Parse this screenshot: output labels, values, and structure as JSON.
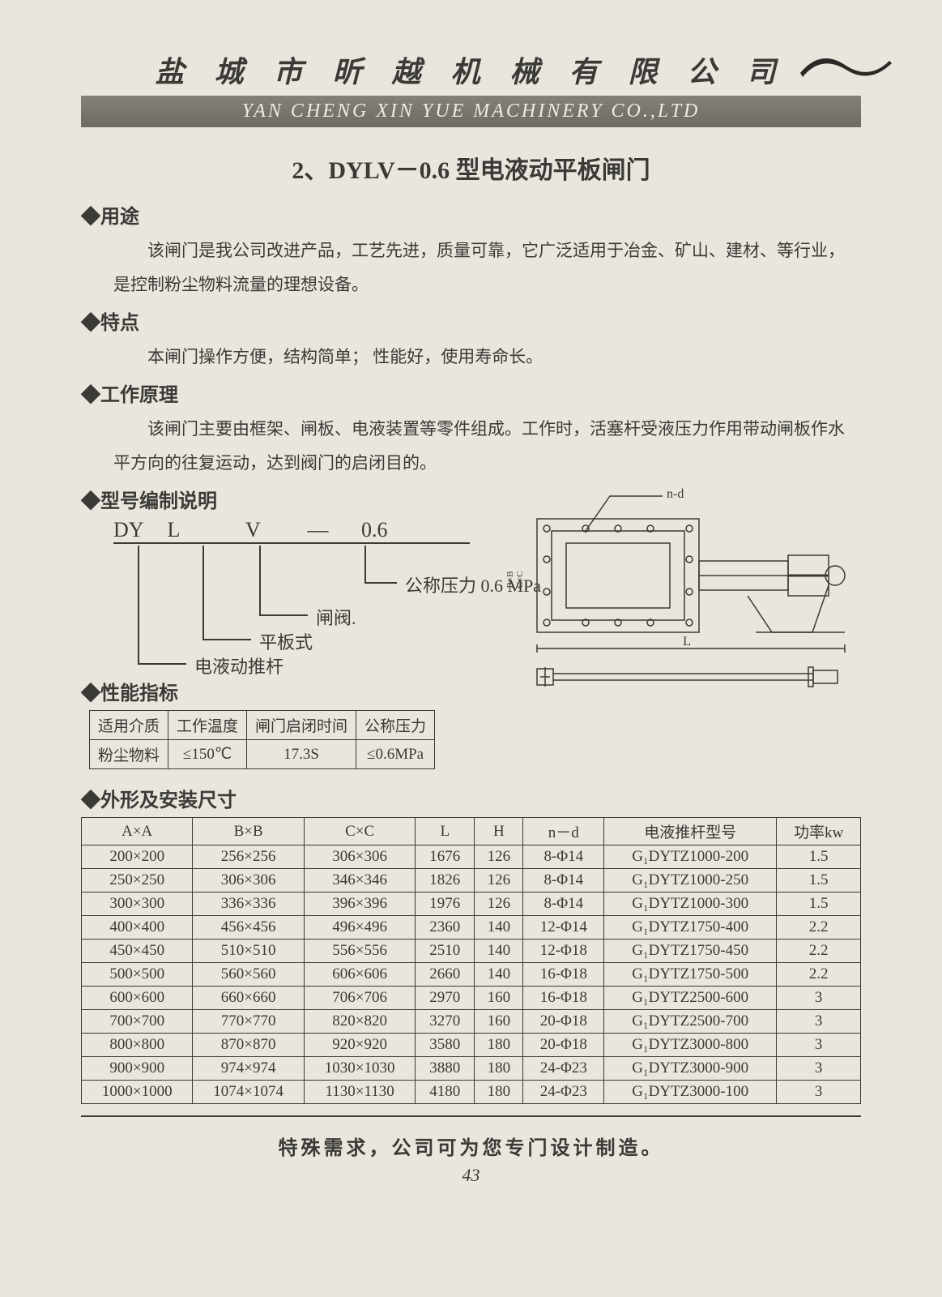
{
  "header": {
    "company_cn": "盐 城 市 昕 越 机 械 有 限 公 司",
    "company_en": "YAN CHENG XIN YUE MACHINERY CO.,LTD"
  },
  "title": "2、DYLV－0.6 型电液动平板闸门",
  "sections": {
    "use_h": "◆用途",
    "use_p": "该闸门是我公司改进产品，工艺先进，质量可靠，它广泛适用于冶金、矿山、建材、等行业，是控制粉尘物料流量的理想设备。",
    "feat_h": "◆特点",
    "feat_p": "本闸门操作方便，结构简单；  性能好，使用寿命长。",
    "work_h": "◆工作原理",
    "work_p": "该闸门主要由框架、闸板、电液装置等零件组成。工作时，活塞杆受液压力作用带动闸板作水平方向的往复运动，达到阀门的启闭目的。",
    "model_h": "◆型号编制说明",
    "perf_h": "◆性能指标",
    "dim_h": "◆外形及安装尺寸"
  },
  "model": {
    "parts": [
      "DY",
      "L",
      "V",
      "—",
      "0.6"
    ],
    "labels": {
      "a": "公称压力 0.6 MPa",
      "b": "闸阀.",
      "c": "平板式",
      "d": "电液动推杆"
    }
  },
  "perf": {
    "h": [
      "适用介质",
      "工作温度",
      "闸门启闭时间",
      "公称压力"
    ],
    "r": [
      "粉尘物料",
      "≤150℃",
      "17.3S",
      "≤0.6MPa"
    ]
  },
  "dim": {
    "h": [
      "A×A",
      "B×B",
      "C×C",
      "L",
      "H",
      "n－d",
      "电液推杆型号",
      "功率kw"
    ],
    "rows": [
      [
        "200×200",
        "256×256",
        "306×306",
        "1676",
        "126",
        "8-Φ14",
        "G₁DYTZ1000-200",
        "1.5"
      ],
      [
        "250×250",
        "306×306",
        "346×346",
        "1826",
        "126",
        "8-Φ14",
        "G₁DYTZ1000-250",
        "1.5"
      ],
      [
        "300×300",
        "336×336",
        "396×396",
        "1976",
        "126",
        "8-Φ14",
        "G₁DYTZ1000-300",
        "1.5"
      ],
      [
        "400×400",
        "456×456",
        "496×496",
        "2360",
        "140",
        "12-Φ14",
        "G₁DYTZ1750-400",
        "2.2"
      ],
      [
        "450×450",
        "510×510",
        "556×556",
        "2510",
        "140",
        "12-Φ18",
        "G₁DYTZ1750-450",
        "2.2"
      ],
      [
        "500×500",
        "560×560",
        "606×606",
        "2660",
        "140",
        "16-Φ18",
        "G₁DYTZ1750-500",
        "2.2"
      ],
      [
        "600×600",
        "660×660",
        "706×706",
        "2970",
        "160",
        "16-Φ18",
        "G₁DYTZ2500-600",
        "3"
      ],
      [
        "700×700",
        "770×770",
        "820×820",
        "3270",
        "160",
        "20-Φ18",
        "G₁DYTZ2500-700",
        "3"
      ],
      [
        "800×800",
        "870×870",
        "920×920",
        "3580",
        "180",
        "20-Φ18",
        "G₁DYTZ3000-800",
        "3"
      ],
      [
        "900×900",
        "974×974",
        "1030×1030",
        "3880",
        "180",
        "24-Φ23",
        "G₁DYTZ3000-900",
        "3"
      ],
      [
        "1000×1000",
        "1074×1074",
        "1130×1130",
        "4180",
        "180",
        "24-Φ23",
        "G₁DYTZ3000-100",
        "3"
      ]
    ]
  },
  "drawing": {
    "callout": "n-d",
    "dim_l": "L",
    "dim_c": "C×C",
    "dim_b": "B×B",
    "dim_a": "A×A"
  },
  "note": "特殊需求，公司可为您专门设计制造。",
  "page": "43"
}
